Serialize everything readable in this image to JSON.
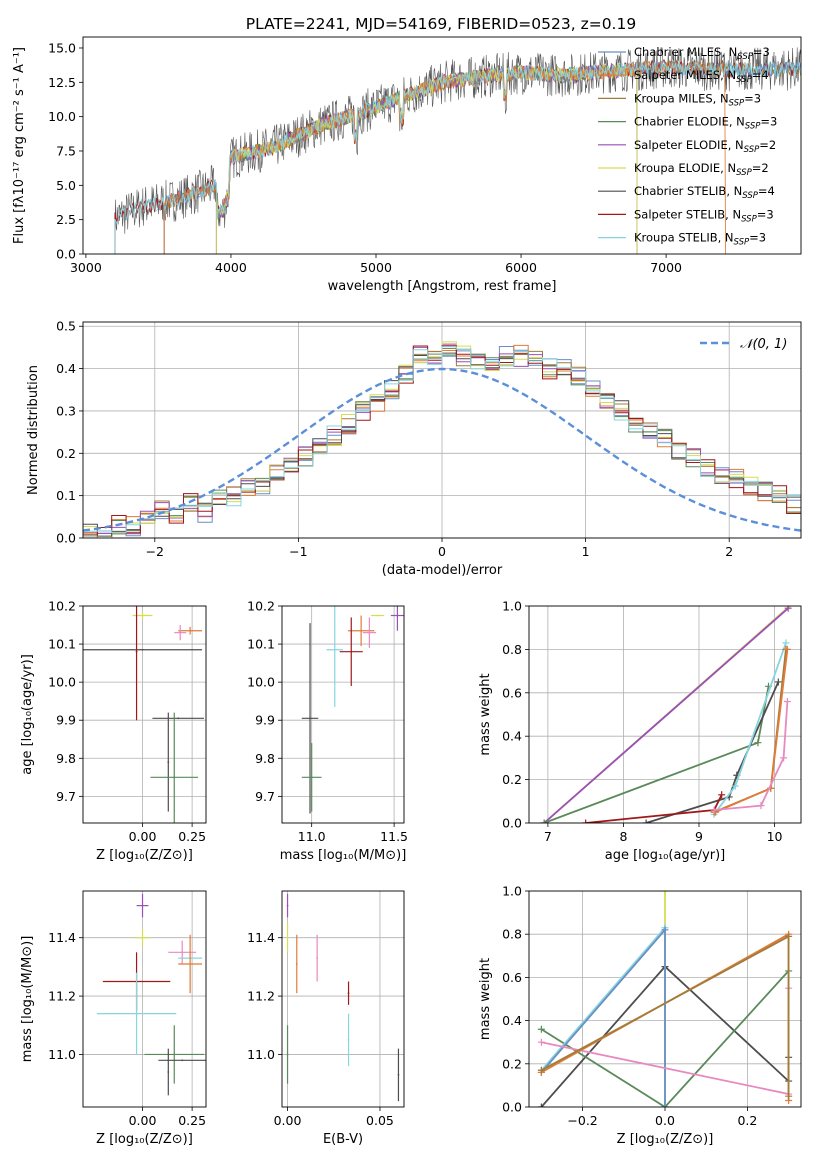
{
  "figure_title": "PLATE=2241, MJD=54169, FIBERID=0523, z=0.19",
  "colors": {
    "Chabrier MILES": "#6b8fc4",
    "Salpeter MILES": "#e07b39",
    "Kroupa MILES": "#a07d3a",
    "Chabrier ELODIE": "#5a8a5a",
    "Salpeter ELODIE": "#9b4fb8",
    "Kroupa ELODIE": "#d6dc55",
    "Chabrier STELIB": "#4d4d4d",
    "Salpeter STELIB": "#a01818",
    "Kroupa STELIB": "#86d5e0",
    "normal": "#5b8fd9",
    "pink": "#e889c0"
  },
  "chart_data": [
    {
      "id": "spectrum",
      "type": "line",
      "title": "PLATE=2241, MJD=54169, FIBERID=0523, z=0.19",
      "xlabel": "wavelength [Angstrom, rest frame]",
      "ylabel": "Flux [fλ10⁻¹⁷ erg cm⁻² s⁻¹ A⁻¹]",
      "xlim": [
        2980,
        7930
      ],
      "ylim": [
        0,
        15.8
      ],
      "xticks": [
        3000,
        4000,
        5000,
        6000,
        7000
      ],
      "yticks": [
        0.0,
        2.5,
        5.0,
        7.5,
        10.0,
        12.5,
        15.0
      ],
      "xticklabels": [
        "3000",
        "4000",
        "5000",
        "6000",
        "7000"
      ],
      "yticklabels": [
        "0.0",
        "2.5",
        "5.0",
        "7.5",
        "10.0",
        "12.5",
        "15.0"
      ],
      "legend": {
        "position": "upper right",
        "entries": [
          {
            "base": "Chabrier MILES, N",
            "sub": "SSP",
            "tail": "=3"
          },
          {
            "base": "Salpeter MILES, N",
            "sub": "SSP",
            "tail": "=4"
          },
          {
            "base": "Kroupa MILES, N",
            "sub": "SSP",
            "tail": "=3"
          },
          {
            "base": "Chabrier ELODIE, N",
            "sub": "SSP",
            "tail": "=3"
          },
          {
            "base": "Salpeter ELODIE, N",
            "sub": "SSP",
            "tail": "=2"
          },
          {
            "base": "Kroupa ELODIE, N",
            "sub": "SSP",
            "tail": "=2"
          },
          {
            "base": "Chabrier STELIB, N",
            "sub": "SSP",
            "tail": "=4"
          },
          {
            "base": "Salpeter STELIB, N",
            "sub": "SSP",
            "tail": "=3"
          },
          {
            "base": "Kroupa STELIB, N",
            "sub": "SSP",
            "tail": "=3"
          }
        ]
      },
      "continuum": [
        [
          3200,
          2.6
        ],
        [
          3400,
          3.5
        ],
        [
          3600,
          3.9
        ],
        [
          3800,
          4.6
        ],
        [
          3950,
          5.2
        ],
        [
          4000,
          7.0
        ],
        [
          4300,
          7.8
        ],
        [
          4600,
          9.3
        ],
        [
          4900,
          10.3
        ],
        [
          5200,
          11.5
        ],
        [
          5500,
          12.6
        ],
        [
          5800,
          13.0
        ],
        [
          6000,
          13.2
        ],
        [
          6300,
          13.0
        ],
        [
          6600,
          13.3
        ],
        [
          7000,
          13.6
        ],
        [
          7400,
          13.4
        ],
        [
          7900,
          13.5
        ]
      ],
      "series_starts": {
        "Chabrier MILES": 3540,
        "Salpeter MILES": 3540,
        "Kroupa MILES": 3540,
        "Chabrier ELODIE": 3900,
        "Salpeter ELODIE": 3900,
        "Kroupa ELODIE": 3900,
        "Chabrier STELIB": 3200,
        "Salpeter STELIB": 3200,
        "Kroupa STELIB": 3200
      },
      "series_ends": {
        "Kroupa ELODIE": 6800,
        "Salpeter ELODIE": 6800,
        "Chabrier ELODIE": 6800,
        "Salpeter MILES": 7410
      }
    },
    {
      "id": "histogram",
      "type": "histogram",
      "xlabel": "(data-model)/error",
      "ylabel": "Normed distribution",
      "xlim": [
        -2.5,
        2.5
      ],
      "ylim": [
        0,
        0.51
      ],
      "xticks": [
        -2,
        -1,
        0,
        1,
        2
      ],
      "yticks": [
        0.0,
        0.1,
        0.2,
        0.3,
        0.4,
        0.5
      ],
      "xticklabels": [
        "−2",
        "−1",
        "0",
        "1",
        "2"
      ],
      "yticklabels": [
        "0.0",
        "0.1",
        "0.2",
        "0.3",
        "0.4",
        "0.5"
      ],
      "grid": true,
      "normal_curve": {
        "label": "𝒩(0, 1)",
        "mean": 0,
        "sigma": 1
      },
      "bin_width": 0.1,
      "bin_start": -2.5,
      "envelope": [
        0.01,
        0.01,
        0.03,
        0.03,
        0.05,
        0.07,
        0.06,
        0.08,
        0.06,
        0.1,
        0.1,
        0.12,
        0.12,
        0.15,
        0.18,
        0.19,
        0.21,
        0.24,
        0.27,
        0.3,
        0.32,
        0.35,
        0.39,
        0.43,
        0.43,
        0.44,
        0.43,
        0.42,
        0.41,
        0.43,
        0.43,
        0.42,
        0.4,
        0.41,
        0.38,
        0.35,
        0.33,
        0.3,
        0.27,
        0.26,
        0.24,
        0.21,
        0.19,
        0.16,
        0.15,
        0.14,
        0.12,
        0.11,
        0.1,
        0.08,
        0.06,
        0.06,
        0.05,
        0.05,
        0.04,
        0.04,
        0.03,
        0.02,
        0.02,
        0.02
      ]
    },
    {
      "id": "age_vs_Z",
      "type": "errorbar",
      "xlabel": "Z [log₁₀(Z/Z⊙)]",
      "ylabel": "age  [log₁₀(age/yr)]",
      "xlim": [
        -0.3,
        0.32
      ],
      "ylim": [
        9.63,
        10.2
      ],
      "xticks": [
        0.0,
        0.25
      ],
      "xticklabels": [
        "0.00",
        "0.25"
      ],
      "yticks": [
        9.7,
        9.8,
        9.9,
        10.0,
        10.1,
        10.2
      ],
      "yticklabels": [
        "9.7",
        "9.8",
        "9.9",
        "10.0",
        "10.1",
        "10.2"
      ],
      "points": [
        {
          "series": "Kroupa ELODIE",
          "x": 0.0,
          "y": 10.175,
          "xerr": 0.05,
          "yerr": 0.01
        },
        {
          "series": "Salpeter MILES",
          "x": 0.24,
          "y": 10.135,
          "xerr": 0.06,
          "yerr": 0.01
        },
        {
          "series": "pink",
          "x": 0.19,
          "y": 10.13,
          "xerr": 0.03,
          "yerr": 0.02
        },
        {
          "series": "Chabrier STELIB",
          "x": 0.0,
          "y": 10.085,
          "xerr": 0.3,
          "yerr": 0.0
        },
        {
          "series": "Salpeter STELIB",
          "x": -0.03,
          "y": 10.08,
          "xerr": 0.0,
          "yerr": 0.18
        },
        {
          "series": "Chabrier STELIB",
          "x": 0.18,
          "y": 9.905,
          "xerr": 0.13,
          "yerr": 0.0
        },
        {
          "series": "Chabrier STELIB",
          "x": 0.13,
          "y": 9.79,
          "xerr": 0.0,
          "yerr": 0.13
        },
        {
          "series": "Chabrier ELODIE",
          "x": 0.16,
          "y": 9.75,
          "xerr": 0.12,
          "yerr": 0.17
        }
      ]
    },
    {
      "id": "age_vs_mass",
      "type": "errorbar",
      "xlabel": "mass [log₁₀(M/M⊙)]",
      "ylabel": "",
      "xlim": [
        10.82,
        11.56
      ],
      "ylim": [
        9.63,
        10.2
      ],
      "xticks": [
        11.0,
        11.5
      ],
      "xticklabels": [
        "11.0",
        "11.5"
      ],
      "yticks": [
        9.7,
        9.8,
        9.9,
        10.0,
        10.1,
        10.2
      ],
      "yticklabels": [
        "9.7",
        "9.8",
        "9.9",
        "10.0",
        "10.1",
        "10.2"
      ],
      "points": [
        {
          "series": "Salpeter ELODIE",
          "x": 11.52,
          "y": 10.175,
          "xerr": 0.04,
          "yerr": 0.04
        },
        {
          "series": "Kroupa ELODIE",
          "x": 11.4,
          "y": 10.175,
          "xerr": 0.04,
          "yerr": 0.0
        },
        {
          "series": "Salpeter MILES",
          "x": 11.3,
          "y": 10.135,
          "xerr": 0.08,
          "yerr": 0.04
        },
        {
          "series": "pink",
          "x": 11.35,
          "y": 10.13,
          "xerr": 0.04,
          "yerr": 0.04
        },
        {
          "series": "Kroupa STELIB",
          "x": 11.14,
          "y": 10.085,
          "xerr": 0.05,
          "yerr": 0.15
        },
        {
          "series": "Salpeter STELIB",
          "x": 11.24,
          "y": 10.08,
          "xerr": 0.07,
          "yerr": 0.09
        },
        {
          "series": "Chabrier STELIB",
          "x": 10.99,
          "y": 9.905,
          "xerr": 0.05,
          "yerr": 0.25
        },
        {
          "series": "Chabrier ELODIE",
          "x": 11.0,
          "y": 9.75,
          "xerr": 0.06,
          "yerr": 0.09
        }
      ]
    },
    {
      "id": "weight_vs_age",
      "type": "line",
      "xlabel": "age  [log₁₀(age/yr)]",
      "ylabel": "mass weight",
      "xlim": [
        6.75,
        10.35
      ],
      "ylim": [
        0,
        1.0
      ],
      "xticks": [
        7,
        8,
        9,
        10
      ],
      "xticklabels": [
        "7",
        "8",
        "9",
        "10"
      ],
      "yticks": [
        0.0,
        0.2,
        0.4,
        0.6,
        0.8,
        1.0
      ],
      "yticklabels": [
        "0.0",
        "0.2",
        "0.4",
        "0.6",
        "0.8",
        "1.0"
      ],
      "grid": true,
      "series": [
        {
          "name": "Kroupa ELODIE",
          "x": [
            6.95,
            10.2
          ],
          "y": [
            0.0,
            1.0
          ]
        },
        {
          "name": "Salpeter ELODIE",
          "x": [
            6.95,
            10.18
          ],
          "y": [
            0.0,
            0.99
          ]
        },
        {
          "name": "Chabrier ELODIE",
          "x": [
            6.95,
            9.78,
            9.92
          ],
          "y": [
            0.0,
            0.37,
            0.63
          ]
        },
        {
          "name": "Chabrier STELIB",
          "x": [
            8.3,
            9.4,
            9.5,
            10.05
          ],
          "y": [
            0.0,
            0.12,
            0.22,
            0.65
          ]
        },
        {
          "name": "Salpeter STELIB",
          "x": [
            7.5,
            9.2,
            9.3
          ],
          "y": [
            0.0,
            0.06,
            0.13
          ]
        },
        {
          "name": "Kroupa STELIB",
          "x": [
            9.2,
            9.48,
            10.15
          ],
          "y": [
            0.04,
            0.17,
            0.83
          ]
        },
        {
          "name": "Kroupa MILES",
          "x": [
            9.2,
            9.95,
            10.15
          ],
          "y": [
            0.05,
            0.16,
            0.8
          ]
        },
        {
          "name": "Salpeter MILES",
          "x": [
            9.22,
            9.95,
            10.17
          ],
          "y": [
            0.05,
            0.16,
            0.8
          ]
        },
        {
          "name": "pink",
          "x": [
            9.2,
            9.82,
            10.12,
            10.17
          ],
          "y": [
            0.06,
            0.08,
            0.3,
            0.56
          ]
        }
      ]
    },
    {
      "id": "mass_vs_Z",
      "type": "errorbar",
      "xlabel": "Z [log₁₀(Z/Z⊙)]",
      "ylabel": "mass [log₁₀(M/M⊙)]",
      "xlim": [
        -0.3,
        0.32
      ],
      "ylim": [
        10.82,
        11.56
      ],
      "xticks": [
        0.0,
        0.25
      ],
      "xticklabels": [
        "0.00",
        "0.25"
      ],
      "yticks": [
        11.0,
        11.2,
        11.4
      ],
      "yticklabels": [
        "11.0",
        "11.2",
        "11.4"
      ],
      "points": [
        {
          "series": "Salpeter ELODIE",
          "x": 0.0,
          "y": 11.51,
          "xerr": 0.03,
          "yerr": 0.04
        },
        {
          "series": "Kroupa ELODIE",
          "x": 0.0,
          "y": 11.4,
          "xerr": 0.04,
          "yerr": 0.03
        },
        {
          "series": "pink",
          "x": 0.2,
          "y": 11.35,
          "xerr": 0.07,
          "yerr": 0.04
        },
        {
          "series": "Kroupa STELIB",
          "x": 0.24,
          "y": 11.33,
          "xerr": 0.06,
          "yerr": 0.0
        },
        {
          "series": "Salpeter MILES",
          "x": 0.24,
          "y": 11.31,
          "xerr": 0.06,
          "yerr": 0.1
        },
        {
          "series": "Salpeter STELIB",
          "x": -0.03,
          "y": 11.25,
          "xerr": 0.17,
          "yerr": 0.1
        },
        {
          "series": "Kroupa STELIB",
          "x": -0.03,
          "y": 11.14,
          "xerr": 0.2,
          "yerr": 0.14
        },
        {
          "series": "Chabrier ELODIE",
          "x": 0.16,
          "y": 11.0,
          "xerr": 0.15,
          "yerr": 0.1
        },
        {
          "series": "Chabrier STELIB",
          "x": 0.2,
          "y": 10.98,
          "xerr": 0.12,
          "yerr": 0.0
        },
        {
          "series": "Chabrier STELIB",
          "x": 0.13,
          "y": 10.94,
          "xerr": 0.0,
          "yerr": 0.08
        }
      ]
    },
    {
      "id": "mass_vs_ebv",
      "type": "errorbar",
      "xlabel": "E(B-V)",
      "ylabel": "",
      "xlim": [
        -0.003,
        0.063
      ],
      "ylim": [
        10.82,
        11.56
      ],
      "xticks": [
        0.0,
        0.05
      ],
      "xticklabels": [
        "0.00",
        "0.05"
      ],
      "yticks": [
        11.0,
        11.2,
        11.4
      ],
      "yticklabels": [
        "11.0",
        "11.2",
        "11.4"
      ],
      "points": [
        {
          "series": "Salpeter ELODIE",
          "x": 0.0,
          "y": 11.51,
          "xerr": 0.0,
          "yerr": 0.04
        },
        {
          "series": "Kroupa ELODIE",
          "x": 0.0,
          "y": 11.4,
          "xerr": 0.0,
          "yerr": 0.05
        },
        {
          "series": "Chabrier ELODIE",
          "x": 0.0,
          "y": 11.0,
          "xerr": 0.0,
          "yerr": 0.1
        },
        {
          "series": "Salpeter MILES",
          "x": 0.005,
          "y": 11.31,
          "xerr": 0.0,
          "yerr": 0.1
        },
        {
          "series": "pink",
          "x": 0.016,
          "y": 11.33,
          "xerr": 0.0,
          "yerr": 0.08
        },
        {
          "series": "Salpeter STELIB",
          "x": 0.033,
          "y": 11.21,
          "xerr": 0.0,
          "yerr": 0.04
        },
        {
          "series": "Kroupa STELIB",
          "x": 0.033,
          "y": 11.05,
          "xerr": 0.0,
          "yerr": 0.09
        },
        {
          "series": "Chabrier STELIB",
          "x": 0.06,
          "y": 10.93,
          "xerr": 0.0,
          "yerr": 0.09
        }
      ]
    },
    {
      "id": "weight_vs_Z",
      "type": "line",
      "xlabel": "Z [log₁₀(Z/Z⊙)]",
      "ylabel": "mass weight",
      "xlim": [
        -0.33,
        0.33
      ],
      "ylim": [
        0,
        1.0
      ],
      "xticks": [
        -0.2,
        0.0,
        0.2
      ],
      "xticklabels": [
        "−0.2",
        "0.0",
        "0.2"
      ],
      "yticks": [
        0.0,
        0.2,
        0.4,
        0.6,
        0.8,
        1.0
      ],
      "yticklabels": [
        "0.0",
        "0.2",
        "0.4",
        "0.6",
        "0.8",
        "1.0"
      ],
      "grid": true,
      "series": [
        {
          "name": "Kroupa ELODIE",
          "x": [
            0.0,
            0.0
          ],
          "y": [
            0.0,
            1.0
          ]
        },
        {
          "name": "Chabrier STELIB",
          "x": [
            -0.3,
            0.0,
            0.3,
            0.3
          ],
          "y": [
            0.0,
            0.65,
            0.12,
            0.23
          ]
        },
        {
          "name": "Chabrier ELODIE",
          "x": [
            -0.3,
            0.0,
            0.3
          ],
          "y": [
            0.36,
            0.0,
            0.63
          ]
        },
        {
          "name": "Kroupa STELIB",
          "x": [
            -0.3,
            0.0,
            0.0
          ],
          "y": [
            0.17,
            0.83,
            0.0
          ]
        },
        {
          "name": "Chabrier MILES",
          "x": [
            -0.3,
            0.0,
            0.0
          ],
          "y": [
            0.16,
            0.82,
            0.0
          ]
        },
        {
          "name": "pink",
          "x": [
            -0.3,
            0.3,
            0.3
          ],
          "y": [
            0.3,
            0.06,
            0.55
          ]
        },
        {
          "name": "Salpeter MILES",
          "x": [
            -0.3,
            0.3,
            0.3
          ],
          "y": [
            0.16,
            0.8,
            0.03
          ]
        },
        {
          "name": "Kroupa MILES",
          "x": [
            -0.3,
            0.3,
            0.3
          ],
          "y": [
            0.17,
            0.79,
            0.05
          ]
        }
      ]
    }
  ]
}
